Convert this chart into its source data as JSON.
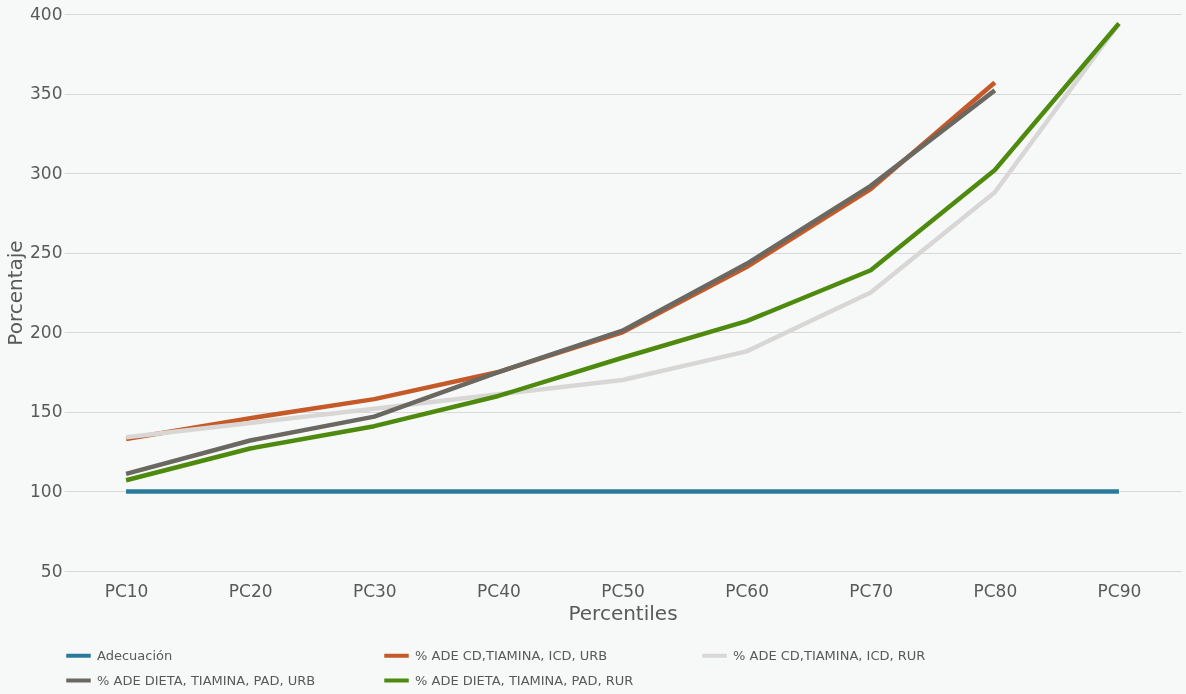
{
  "chart_data": {
    "type": "line",
    "xlabel": "Percentiles",
    "ylabel": "Porcentaje",
    "categories": [
      "PC10",
      "PC20",
      "PC30",
      "PC40",
      "PC50",
      "PC60",
      "PC70",
      "PC80",
      "PC90"
    ],
    "series": [
      {
        "name": "Adecuación",
        "color": "#2a7b9b",
        "values": [
          100,
          100,
          100,
          100,
          100,
          100,
          100,
          100,
          100
        ]
      },
      {
        "name": "% ADE CD,TIAMINA, ICD, URB",
        "color": "#c55a28",
        "values": [
          133,
          146,
          158,
          175,
          200,
          241,
          290,
          357,
          null
        ]
      },
      {
        "name": "% ADE CD,TIAMINA, ICD, RUR",
        "color": "#d9d7d5",
        "values": [
          134,
          143,
          152,
          161,
          170,
          188,
          225,
          288,
          394
        ]
      },
      {
        "name": "% ADE DIETA, TIAMINA, PAD, URB",
        "color": "#6b6761",
        "values": [
          111,
          132,
          147,
          175,
          201,
          243,
          292,
          352,
          null
        ]
      },
      {
        "name": "% ADE DIETA, TIAMINA, PAD, RUR",
        "color": "#4e8a0e",
        "values": [
          107,
          127,
          141,
          160,
          184,
          207,
          239,
          302,
          394
        ]
      }
    ],
    "ylim": [
      50,
      400
    ],
    "yticks": [
      50,
      100,
      150,
      200,
      250,
      300,
      350,
      400
    ],
    "grid": "y",
    "legend": "bottom",
    "marker": "none",
    "line_style": "solid"
  }
}
